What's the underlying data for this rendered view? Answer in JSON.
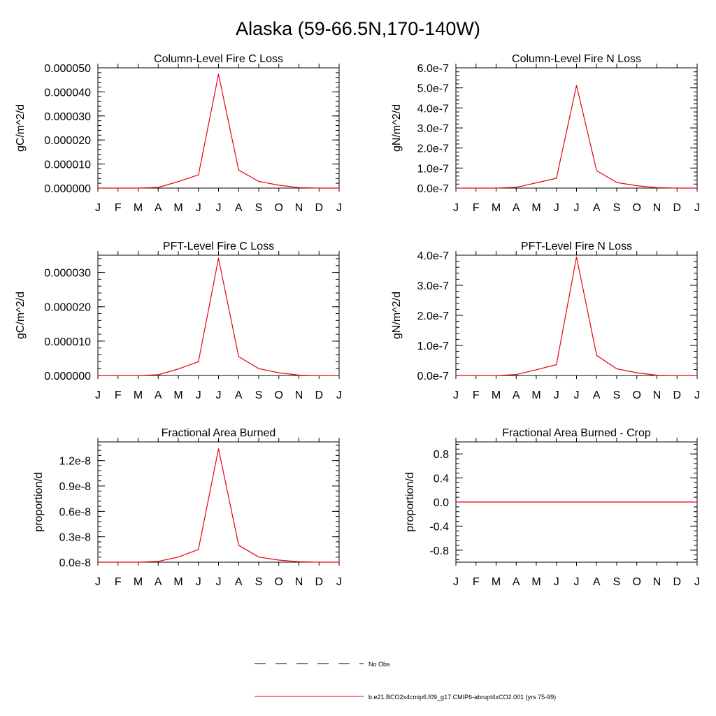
{
  "figure": {
    "title": "Alaska (59-66.5N,170-140W)"
  },
  "colors": {
    "series": "#e8000b",
    "axis": "#000000",
    "obs": "#000000"
  },
  "month_labels": [
    "J",
    "F",
    "M",
    "A",
    "M",
    "J",
    "J",
    "A",
    "S",
    "O",
    "N",
    "D",
    "J"
  ],
  "chart_data": [
    {
      "type": "line",
      "title": "Column-Level Fire C Loss",
      "ylabel": "gC/m^2/d",
      "xlabel": "",
      "ylim": [
        0,
        5e-05
      ],
      "yticks": [
        0,
        1e-05,
        2e-05,
        3e-05,
        4e-05,
        5e-05
      ],
      "ytick_labels": [
        "0.000000",
        "0.000010",
        "0.000020",
        "0.000030",
        "0.000040",
        "0.000050"
      ],
      "categories": [
        "J",
        "F",
        "M",
        "A",
        "M",
        "J",
        "J",
        "A",
        "S",
        "O",
        "N",
        "D",
        "J"
      ],
      "series": [
        {
          "name": "b.e21.BCO2x4cmip6.f09_g17.CMIP6-abrupt4xCO2.001 (yrs 75-99)",
          "values": [
            0,
            0,
            0,
            3e-07,
            2.7e-06,
            5.5e-06,
            4.73e-05,
            7.5e-06,
            2.8e-06,
            1.2e-06,
            2e-07,
            0,
            0
          ]
        }
      ]
    },
    {
      "type": "line",
      "title": "Column-Level Fire N Loss",
      "ylabel": "gN/m^2/d",
      "xlabel": "",
      "ylim": [
        0,
        6e-07
      ],
      "yticks": [
        0,
        1e-07,
        2e-07,
        3e-07,
        4e-07,
        5e-07,
        6e-07
      ],
      "ytick_labels": [
        "0.0e-7",
        "1.0e-7",
        "2.0e-7",
        "3.0e-7",
        "4.0e-7",
        "5.0e-7",
        "6.0e-7"
      ],
      "categories": [
        "J",
        "F",
        "M",
        "A",
        "M",
        "J",
        "J",
        "A",
        "S",
        "O",
        "N",
        "D",
        "J"
      ],
      "series": [
        {
          "name": "b.e21.BCO2x4cmip6.f09_g17.CMIP6-abrupt4xCO2.001 (yrs 75-99)",
          "values": [
            0,
            0,
            0,
            4e-09,
            2.6e-08,
            4.9e-08,
            5.12e-07,
            8.7e-08,
            2.8e-08,
            1.2e-08,
            2e-09,
            0,
            0
          ]
        }
      ]
    },
    {
      "type": "line",
      "title": "PFT-Level Fire C Loss",
      "ylabel": "gC/m^2/d",
      "xlabel": "",
      "ylim": [
        0,
        3.5e-05
      ],
      "yticks": [
        0,
        1e-05,
        2e-05,
        3e-05
      ],
      "ytick_labels": [
        "0.000000",
        "0.000010",
        "0.000020",
        "0.000030"
      ],
      "categories": [
        "J",
        "F",
        "M",
        "A",
        "M",
        "J",
        "J",
        "A",
        "S",
        "O",
        "N",
        "D",
        "J"
      ],
      "series": [
        {
          "name": "b.e21.BCO2x4cmip6.f09_g17.CMIP6-abrupt4xCO2.001 (yrs 75-99)",
          "values": [
            0,
            0,
            0,
            2e-07,
            1.9e-06,
            4e-06,
            3.41e-05,
            5.5e-06,
            2e-06,
            8e-07,
            1e-07,
            0,
            0
          ]
        }
      ]
    },
    {
      "type": "line",
      "title": "PFT-Level Fire N Loss",
      "ylabel": "gN/m^2/d",
      "xlabel": "",
      "ylim": [
        0,
        4e-07
      ],
      "yticks": [
        0,
        1e-07,
        2e-07,
        3e-07,
        4e-07
      ],
      "ytick_labels": [
        "0.0e-7",
        "1.0e-7",
        "2.0e-7",
        "3.0e-7",
        "4.0e-7"
      ],
      "categories": [
        "J",
        "F",
        "M",
        "A",
        "M",
        "J",
        "J",
        "A",
        "S",
        "O",
        "N",
        "D",
        "J"
      ],
      "series": [
        {
          "name": "b.e21.BCO2x4cmip6.f09_g17.CMIP6-abrupt4xCO2.001 (yrs 75-99)",
          "values": [
            0,
            0,
            0,
            3e-09,
            1.9e-08,
            3.6e-08,
            3.94e-07,
            6.7e-08,
            2.2e-08,
            9e-09,
            1e-09,
            0,
            0
          ]
        }
      ]
    },
    {
      "type": "line",
      "title": "Fractional Area Burned",
      "ylabel": "proportion/d",
      "xlabel": "",
      "ylim": [
        0,
        1.42e-08
      ],
      "yticks": [
        0,
        3e-09,
        6e-09,
        9e-09,
        1.2e-08
      ],
      "ytick_labels": [
        "0.0e-8",
        "0.3e-8",
        "0.6e-8",
        "0.9e-8",
        "1.2e-8"
      ],
      "categories": [
        "J",
        "F",
        "M",
        "A",
        "M",
        "J",
        "J",
        "A",
        "S",
        "O",
        "N",
        "D",
        "J"
      ],
      "series": [
        {
          "name": "b.e21.BCO2x4cmip6.f09_g17.CMIP6-abrupt4xCO2.001 (yrs 75-99)",
          "values": [
            0,
            0,
            0,
            1e-10,
            6e-10,
            1.5e-09,
            1.34e-08,
            2e-09,
            6e-10,
            2.5e-10,
            5e-11,
            0,
            0
          ]
        }
      ]
    },
    {
      "type": "line",
      "title": "Fractional Area Burned - Crop",
      "ylabel": "proportion/d",
      "xlabel": "",
      "ylim": [
        -1,
        1
      ],
      "yticks": [
        -0.8,
        -0.4,
        0,
        0.4,
        0.8
      ],
      "ytick_labels": [
        "-0.8",
        "-0.4",
        "0.0",
        "0.4",
        "0.8"
      ],
      "categories": [
        "J",
        "F",
        "M",
        "A",
        "M",
        "J",
        "J",
        "A",
        "S",
        "O",
        "N",
        "D",
        "J"
      ],
      "series": [
        {
          "name": "b.e21.BCO2x4cmip6.f09_g17.CMIP6-abrupt4xCO2.001 (yrs 75-99)",
          "values": [
            0,
            0,
            0,
            0,
            0,
            0,
            0,
            0,
            0,
            0,
            0,
            0,
            0
          ]
        }
      ]
    }
  ],
  "legend": {
    "obs_label": "No Obs",
    "model_label": "b.e21.BCO2x4cmip6.f09_g17.CMIP6-abrupt4xCO2.001 (yrs 75-99)"
  }
}
